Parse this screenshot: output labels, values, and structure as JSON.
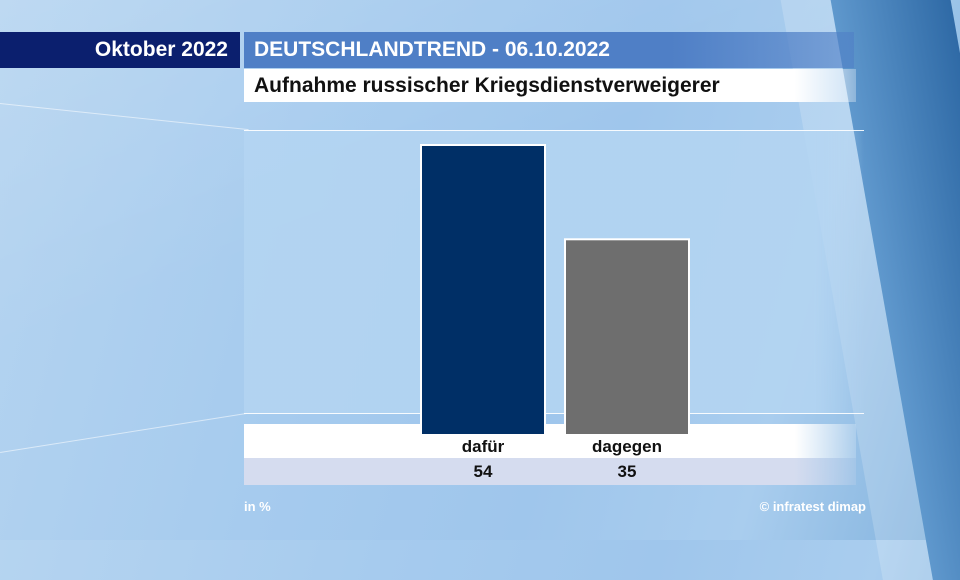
{
  "header": {
    "month": "Oktober 2022",
    "survey": "DEUTSCHLANDTREND - 06.10.2022",
    "question": "Aufnahme russischer Kriegsdienstverweigerer"
  },
  "footer": {
    "unit": "in %",
    "source": "© infratest dimap"
  },
  "colors": {
    "dafuer": "#002f66",
    "dagegen": "#6e6e6e"
  },
  "chart_data": {
    "type": "bar",
    "categories": [
      "dafür",
      "dagegen"
    ],
    "values": [
      54,
      35
    ],
    "value_labels": [
      "54",
      "35"
    ],
    "title": "Aufnahme russischer Kriegsdienstverweigerer",
    "ylim": [
      0,
      55
    ],
    "grid": false,
    "legend": "none"
  }
}
